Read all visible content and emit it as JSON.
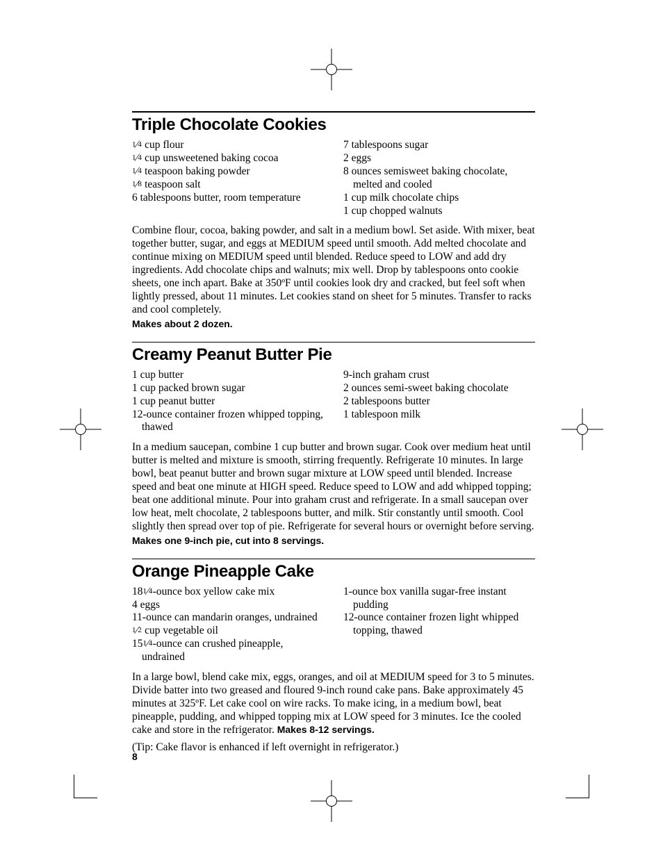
{
  "page_number": "8",
  "colors": {
    "text": "#000000",
    "bg": "#ffffff",
    "rule": "#000000"
  },
  "typography": {
    "title_font": "Helvetica Condensed Bold",
    "title_size_pt": 18,
    "body_font": "Times New Roman",
    "body_size_pt": 11.5,
    "yield_font": "Helvetica Bold",
    "yield_size_pt": 10.5
  },
  "recipes": [
    {
      "title": "Triple Chocolate Cookies",
      "ingredients_left": [
        "¼ cup flour",
        "¼ cup unsweetened baking cocoa",
        "¼ teaspoon baking powder",
        "⅛ teaspoon salt",
        "6 tablespoons butter, room temperature"
      ],
      "ingredients_right": [
        "7 tablespoons sugar",
        "2 eggs",
        "8 ounces semisweet baking chocolate, melted and cooled",
        "1 cup milk chocolate chips",
        "1 cup chopped walnuts"
      ],
      "instructions": "Combine flour, cocoa, baking powder, and salt in a medium bowl. Set aside. With mixer, beat together butter, sugar, and eggs at MEDIUM speed until smooth. Add melted chocolate and continue mixing on MEDIUM speed until blended. Reduce speed to LOW and add dry ingredients. Add chocolate chips and walnuts; mix well. Drop by tablespoons onto cookie sheets, one inch apart. Bake at 350ºF until cookies look dry and cracked, but feel soft when lightly pressed, about 11 minutes. Let cookies stand on sheet for 5 minutes. Transfer to racks and cool completely.",
      "yield": "Makes about 2 dozen."
    },
    {
      "title": "Creamy Peanut Butter Pie",
      "ingredients_left": [
        "1 cup butter",
        "1 cup packed brown sugar",
        "1 cup peanut butter",
        "12-ounce container frozen whipped topping, thawed"
      ],
      "ingredients_right": [
        "9-inch graham crust",
        "2 ounces semi-sweet baking chocolate",
        "2 tablespoons butter",
        "1 tablespoon milk"
      ],
      "instructions": "In a medium saucepan, combine 1 cup butter and brown sugar. Cook over medium heat until butter is melted and mixture is smooth, stirring frequently. Refrigerate 10 minutes. In large bowl, beat peanut butter and brown sugar mixture at LOW speed until blended. Increase speed and beat one minute at HIGH speed. Reduce speed to LOW and add whipped topping; beat one additional minute. Pour into graham crust and refrigerate. In a small saucepan over low heat, melt chocolate, 2 tablespoons butter, and milk. Stir constantly until smooth. Cool slightly then spread over top of pie. Refrigerate for several hours or overnight before serving.",
      "yield": "Makes one 9-inch pie, cut into 8 servings."
    },
    {
      "title": "Orange Pineapple Cake",
      "ingredients_left": [
        "18¼-ounce box yellow cake mix",
        "4 eggs",
        "11-ounce can mandarin oranges, undrained",
        "½ cup vegetable oil",
        "15¼-ounce can crushed pineapple, undrained"
      ],
      "ingredients_right": [
        "1-ounce box vanilla sugar-free instant pudding",
        "12-ounce container frozen light whipped topping, thawed"
      ],
      "instructions": "In a large bowl, blend cake mix, eggs, oranges, and oil at MEDIUM speed for 3 to 5 minutes. Divide batter into two greased and floured 9-inch round cake pans. Bake approximately 45 minutes at 325ºF. Let cake cool on wire racks. To make icing, in a medium bowl, beat pineapple, pudding, and whipped topping mix at LOW speed for 3 minutes. Ice the cooled cake and store in the refrigerator.",
      "yield_inline": "Makes 8-12 servings.",
      "tip": "(Tip: Cake flavor is enhanced if left overnight in refrigerator.)"
    }
  ]
}
